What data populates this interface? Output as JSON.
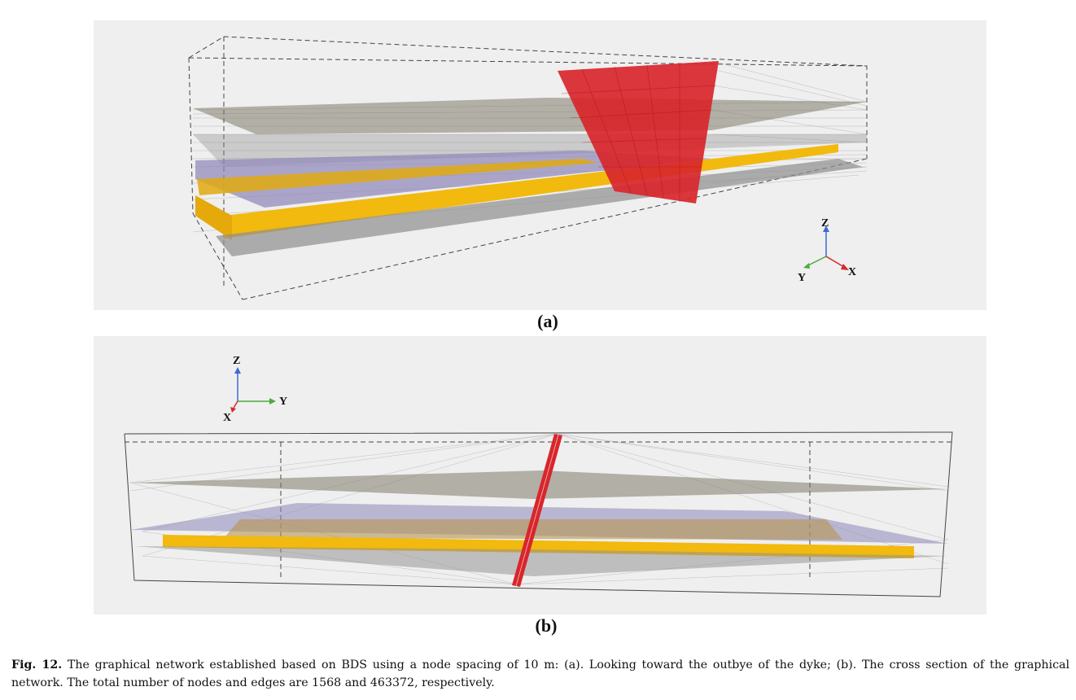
{
  "figure": {
    "panel_a_label": "(a)",
    "panel_b_label": "(b)",
    "caption_label": "Fig. 12.",
    "caption_text": "The graphical network established based on BDS using a node spacing of 10 m: (a). Looking toward the outbye of the dyke; (b). The cross section of the graphical network. The total number of nodes and edges are 1568 and 463372, respectively."
  },
  "axes_a": {
    "z": "Z",
    "y": "Y",
    "x": "X"
  },
  "axes_b": {
    "z": "Z",
    "y": "Y",
    "x": "X"
  },
  "colors": {
    "background": "#efefef",
    "dyke": "#d8262b",
    "seam": "#f2b90e",
    "layer_grey": "#8e8e8e",
    "layer_purple": "#8d86b8",
    "edge_lines": "#bdbdbd",
    "axis_z": "#3b6bd1",
    "axis_y": "#4caa3a",
    "axis_x": "#d42a2a"
  }
}
